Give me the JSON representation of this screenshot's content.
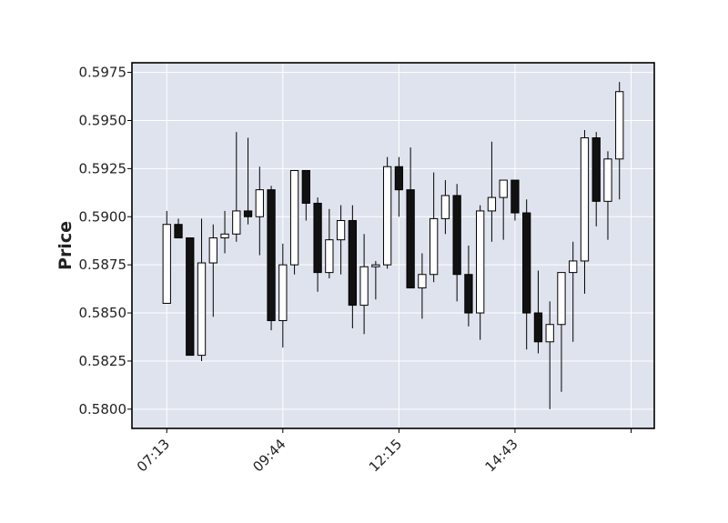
{
  "chart_data": {
    "type": "candlestick",
    "title": "",
    "xlabel": "",
    "ylabel": "Price",
    "ylim": [
      0.579,
      0.598
    ],
    "y_ticks": [
      "0.5800",
      "0.5825",
      "0.5850",
      "0.5875",
      "0.5900",
      "0.5925",
      "0.5950",
      "0.5975"
    ],
    "x_tick_labels": [
      "07:13",
      "09:44",
      "12:15",
      "14:43"
    ],
    "x_tick_candle_index": [
      0,
      10,
      20,
      30
    ],
    "x_range": [
      -3,
      42
    ],
    "grid": true,
    "up_color": "#ffffff",
    "down_color": "#111111",
    "background_color": "#dfe3ee",
    "candles": [
      {
        "open": 0.5855,
        "high": 0.5903,
        "low": 0.5855,
        "close": 0.5896
      },
      {
        "open": 0.5896,
        "high": 0.5899,
        "low": 0.5889,
        "close": 0.5889
      },
      {
        "open": 0.5889,
        "high": 0.5889,
        "low": 0.5828,
        "close": 0.5828
      },
      {
        "open": 0.5828,
        "high": 0.5899,
        "low": 0.5825,
        "close": 0.5876
      },
      {
        "open": 0.5876,
        "high": 0.5896,
        "low": 0.5848,
        "close": 0.5889
      },
      {
        "open": 0.5889,
        "high": 0.5903,
        "low": 0.5881,
        "close": 0.5891
      },
      {
        "open": 0.5891,
        "high": 0.5944,
        "low": 0.5887,
        "close": 0.5903
      },
      {
        "open": 0.5903,
        "high": 0.5941,
        "low": 0.5896,
        "close": 0.59
      },
      {
        "open": 0.59,
        "high": 0.5926,
        "low": 0.588,
        "close": 0.5914
      },
      {
        "open": 0.5914,
        "high": 0.5916,
        "low": 0.5841,
        "close": 0.5846
      },
      {
        "open": 0.5846,
        "high": 0.5886,
        "low": 0.5832,
        "close": 0.5875
      },
      {
        "open": 0.5875,
        "high": 0.5924,
        "low": 0.587,
        "close": 0.5924
      },
      {
        "open": 0.5924,
        "high": 0.5924,
        "low": 0.5898,
        "close": 0.5907
      },
      {
        "open": 0.5907,
        "high": 0.591,
        "low": 0.5861,
        "close": 0.5871
      },
      {
        "open": 0.5871,
        "high": 0.5904,
        "low": 0.5868,
        "close": 0.5888
      },
      {
        "open": 0.5888,
        "high": 0.5906,
        "low": 0.587,
        "close": 0.5898
      },
      {
        "open": 0.5898,
        "high": 0.5906,
        "low": 0.5842,
        "close": 0.5854
      },
      {
        "open": 0.5854,
        "high": 0.5891,
        "low": 0.5839,
        "close": 0.5874
      },
      {
        "open": 0.5874,
        "high": 0.5877,
        "low": 0.5857,
        "close": 0.5875
      },
      {
        "open": 0.5875,
        "high": 0.5931,
        "low": 0.5873,
        "close": 0.5926
      },
      {
        "open": 0.5926,
        "high": 0.5931,
        "low": 0.59,
        "close": 0.5914
      },
      {
        "open": 0.5914,
        "high": 0.5936,
        "low": 0.5863,
        "close": 0.5863
      },
      {
        "open": 0.5863,
        "high": 0.5881,
        "low": 0.5847,
        "close": 0.587
      },
      {
        "open": 0.587,
        "high": 0.5923,
        "low": 0.5866,
        "close": 0.5899
      },
      {
        "open": 0.5899,
        "high": 0.5919,
        "low": 0.5891,
        "close": 0.5911
      },
      {
        "open": 0.5911,
        "high": 0.5917,
        "low": 0.5856,
        "close": 0.587
      },
      {
        "open": 0.587,
        "high": 0.5885,
        "low": 0.5843,
        "close": 0.585
      },
      {
        "open": 0.585,
        "high": 0.5906,
        "low": 0.5836,
        "close": 0.5903
      },
      {
        "open": 0.5903,
        "high": 0.5939,
        "low": 0.5887,
        "close": 0.591
      },
      {
        "open": 0.591,
        "high": 0.5919,
        "low": 0.5888,
        "close": 0.5919
      },
      {
        "open": 0.5919,
        "high": 0.5919,
        "low": 0.5898,
        "close": 0.5902
      },
      {
        "open": 0.5902,
        "high": 0.5909,
        "low": 0.5831,
        "close": 0.585
      },
      {
        "open": 0.585,
        "high": 0.5872,
        "low": 0.5829,
        "close": 0.5835
      },
      {
        "open": 0.5835,
        "high": 0.5856,
        "low": 0.58,
        "close": 0.5844
      },
      {
        "open": 0.5844,
        "high": 0.5871,
        "low": 0.5809,
        "close": 0.5871
      },
      {
        "open": 0.5871,
        "high": 0.5887,
        "low": 0.5835,
        "close": 0.5877
      },
      {
        "open": 0.5877,
        "high": 0.5945,
        "low": 0.586,
        "close": 0.5941
      },
      {
        "open": 0.5941,
        "high": 0.5944,
        "low": 0.5895,
        "close": 0.5908
      },
      {
        "open": 0.5908,
        "high": 0.5934,
        "low": 0.5888,
        "close": 0.593
      },
      {
        "open": 0.593,
        "high": 0.597,
        "low": 0.5909,
        "close": 0.5965
      }
    ]
  }
}
